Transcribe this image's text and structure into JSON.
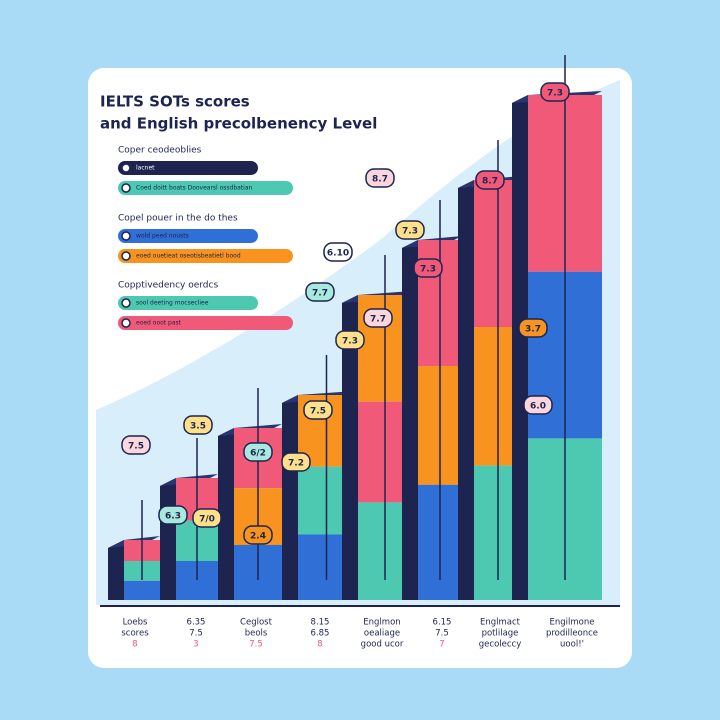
{
  "title": [
    "IELTS SOTs scores",
    "and English precolbenency Level"
  ],
  "legend": [
    {
      "heading": "Coper ceodeoblies",
      "items": [
        "lacnet",
        "Coed doitt boats   Doovearsl ossdbatian"
      ]
    },
    {
      "heading": "Copel pouer in the do thes",
      "items": [
        "wold peed nousts",
        "eoed ouetieat oseotisbeatietl bood"
      ]
    },
    {
      "heading": "Copptivedency oerdcs",
      "items": [
        "sool deeting   mocsecliee",
        "eoed ooot past"
      ]
    }
  ],
  "bubbles": [
    "7.5",
    "3.5",
    "6.3",
    "7/0",
    "6/2",
    "2.4",
    "7.2",
    "7.7",
    "7.3",
    "6.10",
    "7.5",
    "8.7",
    "7.7",
    "7.3",
    "8.7",
    "7.3",
    "6.0",
    "3.7",
    "7.3"
  ],
  "axis_labels": [
    [
      "Loebs",
      "scores",
      "8"
    ],
    [
      "6.35",
      "7.5",
      "3"
    ],
    [
      "Ceglost",
      "beols",
      "7.5"
    ],
    [
      "8.15",
      "6.85",
      "8"
    ],
    [
      "Englmon",
      "oealiage",
      "good ucor"
    ],
    [
      "6.15",
      "7.5",
      "7"
    ],
    [
      "Englmact",
      "potlilage",
      "gecoleccy"
    ],
    [
      "Engilmone",
      "prodilleonce",
      "uool!'"
    ]
  ]
}
